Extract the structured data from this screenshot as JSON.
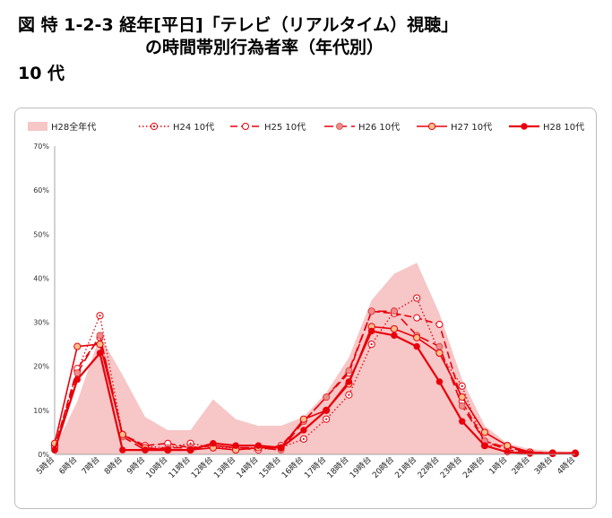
{
  "heading": {
    "line1": "図 特 1-2-3 経年[平日]「テレビ（リアルタイム）視聴」",
    "line2": "の時間帯別行為者率（年代別）",
    "line3": "10 代"
  },
  "chart_data": {
    "type": "line",
    "title": "",
    "xlabel": "",
    "ylabel": "",
    "ylim": [
      0,
      70
    ],
    "yticks": [
      "0%",
      "10%",
      "20%",
      "30%",
      "40%",
      "50%",
      "60%",
      "70%"
    ],
    "grid": false,
    "legend_position": "top",
    "categories": [
      "5時台",
      "6時台",
      "7時台",
      "8時台",
      "9時台",
      "10時台",
      "11時台",
      "12時台",
      "13時台",
      "14時台",
      "15時台",
      "16時台",
      "17時台",
      "18時台",
      "19時台",
      "20時台",
      "21時台",
      "22時台",
      "23時台",
      "24時台",
      "1時台",
      "2時台",
      "3時台",
      "4時台"
    ],
    "area": {
      "name": "H28全年代",
      "color": "#f7c6c6",
      "values": [
        1.5,
        12,
        27,
        18,
        8.5,
        5.5,
        5.5,
        12.5,
        8,
        6.5,
        6.5,
        8.5,
        14,
        22,
        35,
        41,
        43.5,
        32,
        17,
        6.5,
        2.5,
        1.2,
        0.8,
        0.6
      ]
    },
    "series": [
      {
        "name": "H24 10代",
        "color": "#e8000b",
        "dash": "1.5,2.5",
        "marker": "target",
        "values": [
          2,
          19,
          31.5,
          4.5,
          1.8,
          1.5,
          2.5,
          1.5,
          1.5,
          1.5,
          1.5,
          3.5,
          8,
          13.5,
          25,
          32.5,
          35.5,
          23,
          15.5,
          2,
          2,
          0.5,
          0.3,
          0.2
        ]
      },
      {
        "name": "H25 10代",
        "color": "#e8000b",
        "dash": "8,4",
        "marker": "open",
        "values": [
          1.5,
          19.5,
          26.5,
          4.5,
          2,
          2.5,
          1.5,
          2,
          1.5,
          1,
          2,
          7.5,
          13,
          18.5,
          32.5,
          32,
          31,
          29.5,
          12,
          3,
          1.5,
          0.5,
          0.3,
          0.3
        ]
      },
      {
        "name": "H26 10代",
        "color": "#e8000b",
        "dash": "10,5",
        "marker": "shaded",
        "values": [
          1,
          18.5,
          27,
          4,
          1,
          1.5,
          1.5,
          2,
          1.5,
          1.5,
          1,
          7.5,
          13,
          19,
          32.5,
          32.5,
          27,
          24.5,
          11,
          3,
          1,
          0.5,
          0.3,
          0.2
        ]
      },
      {
        "name": "H27 10代",
        "color": "#e8000b",
        "dash": "",
        "marker": "orange",
        "values": [
          2.5,
          24.5,
          25,
          4.5,
          1.5,
          1,
          1,
          1.5,
          1,
          1.5,
          1.5,
          8,
          10,
          16,
          29,
          28.5,
          26.5,
          23,
          13,
          5,
          2,
          0.5,
          0.2,
          0.2
        ]
      },
      {
        "name": "H28 10代",
        "color": "#e8000b",
        "dash": "",
        "marker": "solid",
        "values": [
          1,
          17,
          23,
          1,
          1,
          1,
          1,
          2.5,
          2,
          2,
          1.5,
          5.5,
          10,
          16.5,
          28,
          27,
          24.5,
          16.5,
          7.5,
          2,
          0.5,
          0.2,
          0.2,
          0.3
        ]
      }
    ]
  }
}
